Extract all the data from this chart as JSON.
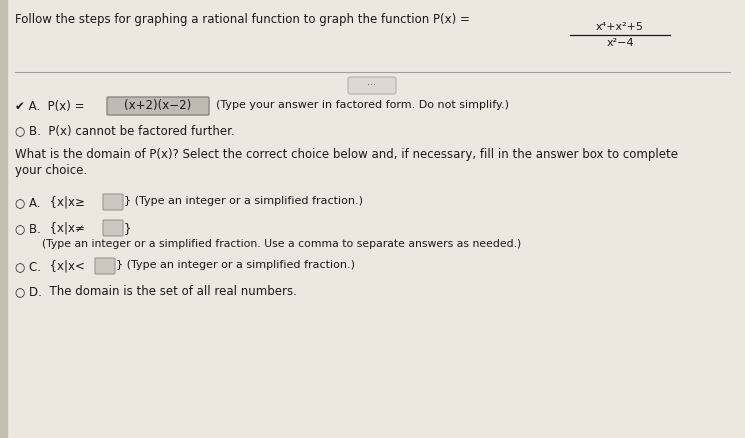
{
  "bg_color": "#ede8df",
  "text_color": "#1a1a1a",
  "title_text": "Follow the steps for graphing a rational function to graph the function P(x) =",
  "frac_num": "x⁴+x²+5",
  "frac_den": "x²−4",
  "sep_line_color": "#a0a0a0",
  "ellipsis_text": "···",
  "secA_prefix": "✔ A.  P(x) =",
  "secA_box": "(x+2)(x−2)",
  "secA_note": "(Type your answer in factored form. Do not simplify.)",
  "secB": "○ B.  P(x) cannot be factored further.",
  "domain_q1": "What is the domain of P(x)? Select the correct choice below and, if necessary, fill in the answer box to complete",
  "domain_q2": "your choice.",
  "dA_circ": "○ A.",
  "dA_text": "  {x|x≥",
  "dA_note": "} (Type an integer or a simplified fraction.)",
  "dB_circ": "○ B.",
  "dB_text": "  {x|x≠",
  "dB_note1": "}",
  "dB_note2": "(Type an integer or a simplified fraction. Use a comma to separate answers as needed.)",
  "dC_circ": "○ C.",
  "dC_text": "  {x|x<",
  "dC_note": "} (Type an integer or a simplified fraction.)",
  "dD_circ": "○ D.",
  "dD_text": "  The domain is the set of all real numbers.",
  "left_bar_color": "#c5bfb0",
  "box_fill": "#c0bbb2",
  "box_edge": "#888880",
  "small_box_fill": "#ccc8c0",
  "small_box_edge": "#999990"
}
